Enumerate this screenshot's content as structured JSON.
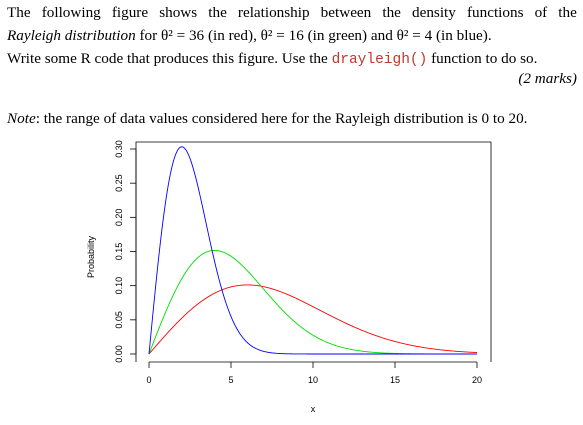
{
  "question": {
    "line1": [
      "The",
      "following",
      "figure",
      "shows",
      "the",
      "relationship",
      "between",
      "the",
      "density",
      "functions",
      "of",
      "the"
    ],
    "line2_italic": "Rayleigh distribution",
    "line2_rest": " for θ² = 36 (in red), θ² = 16 (in green) and θ² = 4 (in blue).",
    "line3_pre": "Write some R code that produces this figure. Use the ",
    "line3_code": "drayleigh()",
    "line3_post": " function to do so.",
    "marks": "(2 marks)"
  },
  "note": {
    "label": "Note",
    "text": ": the range of data values considered here for the Rayleigh distribution is 0 to 20."
  },
  "chart_data": {
    "type": "line",
    "xlabel": "x",
    "ylabel": "Probability",
    "xlim": [
      0,
      20
    ],
    "ylim": [
      0,
      0.3
    ],
    "xticks": [
      0,
      5,
      10,
      15,
      20
    ],
    "yticks": [
      0.0,
      0.05,
      0.1,
      0.15,
      0.2,
      0.25,
      0.3
    ],
    "xtick_labels": [
      "0",
      "5",
      "10",
      "15",
      "20"
    ],
    "ytick_labels": [
      "0.00",
      "0.05",
      "0.10",
      "0.15",
      "0.20",
      "0.25",
      "0.30"
    ],
    "series": [
      {
        "theta2": 36,
        "color": "#ff0000",
        "peak_x": 6,
        "peak_y": 0.101
      },
      {
        "theta2": 16,
        "color": "#00dd00",
        "peak_x": 4,
        "peak_y": 0.152
      },
      {
        "theta2": 4,
        "color": "#0000ff",
        "peak_x": 2,
        "peak_y": 0.303
      }
    ],
    "box": "open-frame"
  }
}
